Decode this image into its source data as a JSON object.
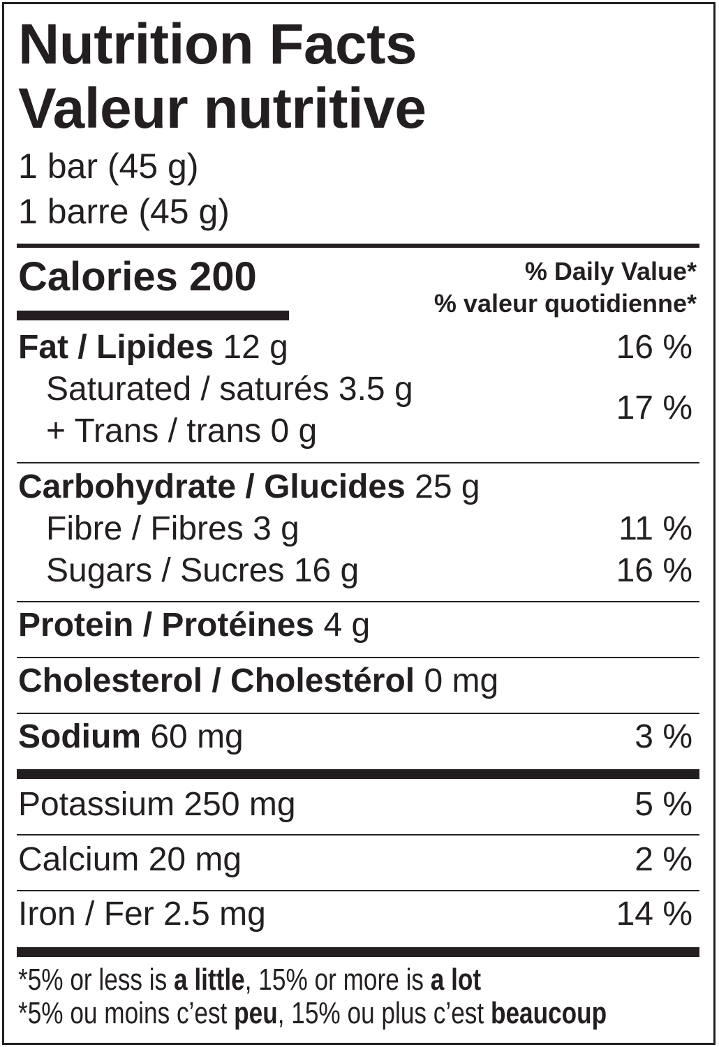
{
  "header": {
    "title_en": "Nutrition Facts",
    "title_fr": "Valeur nutritive",
    "serving_en": "1 bar (45 g)",
    "serving_fr": "1 barre (45 g)"
  },
  "calories": {
    "label": "Calories",
    "value": "200"
  },
  "daily_value": {
    "en": "% Daily Value*",
    "fr": "% valeur quotidienne*"
  },
  "nutrients": {
    "fat": {
      "label": "Fat / Lipides",
      "amount": "12 g",
      "dv": "16 %"
    },
    "saturated": {
      "label": "Saturated / saturés 3.5 g"
    },
    "trans": {
      "label": "+ Trans / trans 0 g"
    },
    "sat_trans_dv": "17 %",
    "carb": {
      "label": "Carbohydrate / Glucides",
      "amount": "25 g"
    },
    "fibre": {
      "label": "Fibre / Fibres 3 g",
      "dv": "11 %"
    },
    "sugars": {
      "label": "Sugars / Sucres 16 g",
      "dv": "16 %"
    },
    "protein": {
      "label": "Protein / Protéines",
      "amount": "4 g"
    },
    "cholesterol": {
      "label": "Cholesterol / Cholestérol",
      "amount": "0 mg"
    },
    "sodium": {
      "label": "Sodium",
      "amount": "60 mg",
      "dv": "3 %"
    },
    "potassium": {
      "label": "Potassium 250 mg",
      "dv": "5 %"
    },
    "calcium": {
      "label": "Calcium 20 mg",
      "dv": "2 %"
    },
    "iron": {
      "label": "Iron / Fer 2.5 mg",
      "dv": "14 %"
    }
  },
  "footnote": {
    "en": {
      "a": "*5% or less is ",
      "b": "a little",
      "c": ", 15% or more is ",
      "d": "a lot"
    },
    "fr": {
      "a": "*5% ou moins c’est ",
      "b": "peu",
      "c": ", 15% ou plus c’est ",
      "d": "beaucoup"
    }
  }
}
